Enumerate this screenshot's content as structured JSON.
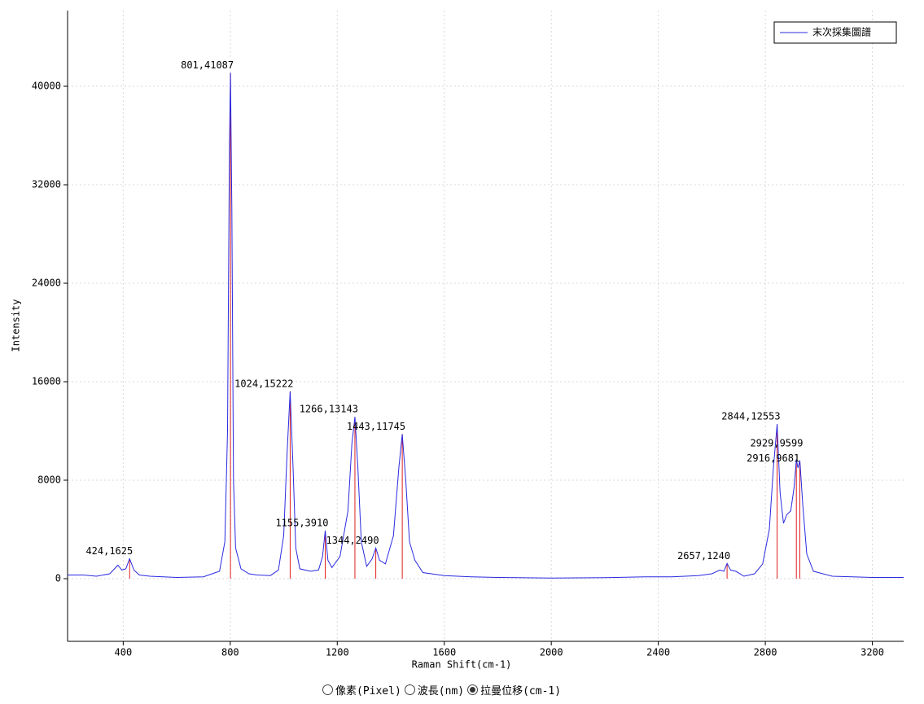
{
  "chart_data": {
    "type": "line",
    "x_label": "Raman Shift(cm-1)",
    "y_label": "Intensity",
    "xlim": [
      192,
      3317
    ],
    "ylim": [
      -5090,
      46150
    ],
    "xticks": [
      400,
      800,
      1200,
      1600,
      2000,
      2400,
      2800,
      3200
    ],
    "yticks": [
      0,
      8000,
      16000,
      24000,
      32000,
      40000
    ],
    "grid": true,
    "legend": "top-right",
    "series": [
      {
        "name": "末次採集圖譜",
        "color": "#2a2ae0",
        "x": [
          192,
          250,
          300,
          350,
          380,
          395,
          410,
          424,
          440,
          460,
          500,
          600,
          700,
          760,
          780,
          790,
          797,
          801,
          806,
          812,
          820,
          840,
          870,
          900,
          950,
          980,
          1000,
          1012,
          1024,
          1035,
          1045,
          1060,
          1100,
          1130,
          1145,
          1155,
          1165,
          1180,
          1210,
          1240,
          1255,
          1266,
          1277,
          1290,
          1310,
          1330,
          1344,
          1358,
          1380,
          1410,
          1430,
          1443,
          1456,
          1470,
          1490,
          1520,
          1600,
          1700,
          1800,
          2000,
          2200,
          2350,
          2450,
          2550,
          2600,
          2630,
          2645,
          2657,
          2670,
          2690,
          2720,
          2760,
          2790,
          2815,
          2830,
          2844,
          2855,
          2868,
          2880,
          2895,
          2908,
          2916,
          2922,
          2929,
          2940,
          2955,
          2980,
          3050,
          3200,
          3317
        ],
        "values": [
          300,
          300,
          200,
          400,
          1100,
          700,
          800,
          1625,
          700,
          300,
          200,
          100,
          150,
          600,
          3000,
          12000,
          35000,
          41087,
          30000,
          8000,
          2500,
          800,
          400,
          300,
          250,
          700,
          3500,
          10000,
          15222,
          9000,
          2500,
          800,
          600,
          700,
          1800,
          3910,
          1500,
          900,
          1800,
          5500,
          11000,
          13143,
          9000,
          3000,
          1000,
          1600,
          2490,
          1500,
          1200,
          3500,
          9000,
          11745,
          8000,
          3000,
          1500,
          500,
          250,
          150,
          100,
          50,
          80,
          150,
          150,
          250,
          400,
          700,
          600,
          1240,
          700,
          600,
          200,
          400,
          1200,
          4000,
          9000,
          12553,
          7000,
          4500,
          5200,
          5500,
          7500,
          9681,
          9000,
          9599,
          6000,
          2000,
          600,
          200,
          100,
          100
        ]
      }
    ],
    "peaks": {
      "color": "#e02020",
      "x": [
        424,
        801,
        1024,
        1155,
        1266,
        1344,
        1443,
        2657,
        2844,
        2916,
        2929
      ],
      "values": [
        1625,
        41087,
        15222,
        3910,
        13143,
        2490,
        11745,
        1240,
        12553,
        9681,
        9599
      ],
      "labels": [
        "424,1625",
        "801,41087",
        "1024,15222",
        "1155,3910",
        "1266,13143",
        "1344,2490",
        "1443,11745",
        "2657,1240",
        "2844,12553",
        "2916,9681",
        "2929,9599"
      ]
    }
  },
  "controls": {
    "options": [
      "像素(Pixel)",
      "波長(nm)",
      "拉曼位移(cm-1)"
    ],
    "selected": 2
  }
}
